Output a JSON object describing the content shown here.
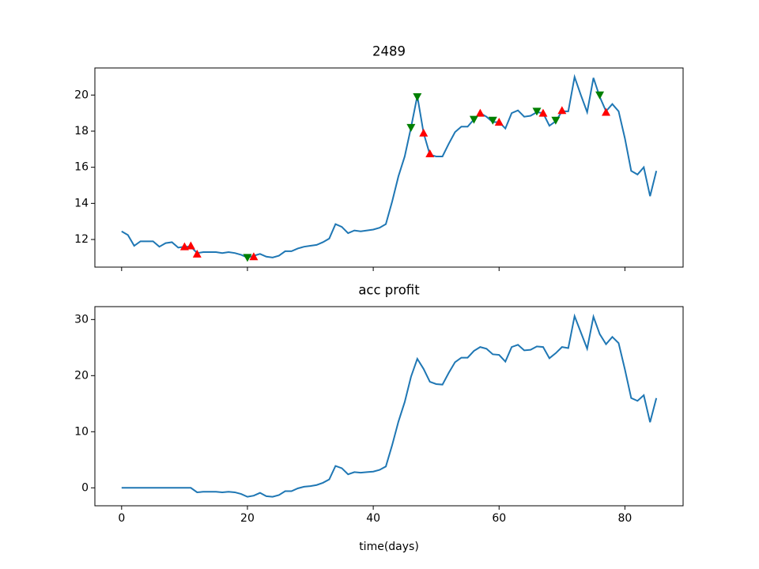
{
  "chart_data": [
    {
      "type": "line",
      "title": "2489",
      "x": [
        0,
        1,
        2,
        3,
        4,
        5,
        6,
        7,
        8,
        9,
        10,
        11,
        12,
        13,
        14,
        15,
        16,
        17,
        18,
        19,
        20,
        21,
        22,
        23,
        24,
        25,
        26,
        27,
        28,
        29,
        30,
        31,
        32,
        33,
        34,
        35,
        36,
        37,
        38,
        39,
        40,
        41,
        42,
        43,
        44,
        45,
        46,
        47,
        48,
        49,
        50,
        51,
        52,
        53,
        54,
        55,
        56,
        57,
        58,
        59,
        60,
        61,
        62,
        63,
        64,
        65,
        66,
        67,
        68,
        69,
        70,
        71,
        72,
        73,
        74,
        75,
        76,
        77,
        78,
        79,
        80,
        81,
        82,
        83,
        84,
        85
      ],
      "series": [
        {
          "color": "#1f77b4",
          "values": [
            12.45,
            12.25,
            11.65,
            11.9,
            11.9,
            11.9,
            11.6,
            11.8,
            11.85,
            11.55,
            11.6,
            11.6,
            11.25,
            11.3,
            11.3,
            11.3,
            11.25,
            11.3,
            11.25,
            11.15,
            11.0,
            11.1,
            11.2,
            11.05,
            11.0,
            11.1,
            11.35,
            11.35,
            11.5,
            11.6,
            11.65,
            11.7,
            11.85,
            12.05,
            12.85,
            12.7,
            12.35,
            12.5,
            12.45,
            12.5,
            12.55,
            12.65,
            12.85,
            14.1,
            15.5,
            16.6,
            18.2,
            19.95,
            17.9,
            16.7,
            16.6,
            16.6,
            17.3,
            17.95,
            18.25,
            18.25,
            18.65,
            19.0,
            18.8,
            18.5,
            18.5,
            18.15,
            19.0,
            19.15,
            18.8,
            18.85,
            19.05,
            19.0,
            18.3,
            18.55,
            19.1,
            19.1,
            21.0,
            20.0,
            19.05,
            20.95,
            19.9,
            19.1,
            19.5,
            19.1,
            17.6,
            15.8,
            15.6,
            16.0,
            14.4,
            15.8
          ]
        },
        {
          "color": "#ff0000",
          "marker": "^",
          "x": [
            10,
            11,
            12,
            21,
            48,
            49,
            57,
            60,
            67,
            70,
            77
          ],
          "values": [
            11.6,
            11.65,
            11.2,
            11.05,
            17.9,
            16.75,
            19.0,
            18.5,
            19.0,
            19.15,
            19.05
          ]
        },
        {
          "color": "#008000",
          "marker": "v",
          "x": [
            20,
            46,
            47,
            56,
            59,
            66,
            69,
            76
          ],
          "values": [
            11.0,
            18.2,
            19.9,
            18.65,
            18.6,
            19.1,
            18.6,
            20.0
          ]
        }
      ],
      "xlim": [
        -4.25,
        89.25
      ],
      "xticks": [
        0,
        20,
        40,
        60,
        80
      ],
      "ylim": [
        10.47,
        21.5
      ],
      "yticks": [
        12,
        14,
        16,
        18,
        20
      ]
    },
    {
      "type": "line",
      "title": "acc profit",
      "xlabel": "time(days)",
      "x": [
        0,
        1,
        2,
        3,
        4,
        5,
        6,
        7,
        8,
        9,
        10,
        11,
        12,
        13,
        14,
        15,
        16,
        17,
        18,
        19,
        20,
        21,
        22,
        23,
        24,
        25,
        26,
        27,
        28,
        29,
        30,
        31,
        32,
        33,
        34,
        35,
        36,
        37,
        38,
        39,
        40,
        41,
        42,
        43,
        44,
        45,
        46,
        47,
        48,
        49,
        50,
        51,
        52,
        53,
        54,
        55,
        56,
        57,
        58,
        59,
        60,
        61,
        62,
        63,
        64,
        65,
        66,
        67,
        68,
        69,
        70,
        71,
        72,
        73,
        74,
        75,
        76,
        77,
        78,
        79,
        80,
        81,
        82,
        83,
        84,
        85
      ],
      "series": [
        {
          "color": "#1f77b4",
          "values": [
            0,
            0,
            0,
            0,
            0,
            0,
            0,
            0,
            0,
            0,
            0,
            0,
            -0.8,
            -0.7,
            -0.7,
            -0.7,
            -0.8,
            -0.7,
            -0.8,
            -1.1,
            -1.6,
            -1.4,
            -0.9,
            -1.5,
            -1.6,
            -1.3,
            -0.6,
            -0.6,
            -0.1,
            0.2,
            0.3,
            0.5,
            0.9,
            1.5,
            3.9,
            3.5,
            2.4,
            2.8,
            2.7,
            2.8,
            2.9,
            3.2,
            3.8,
            7.6,
            11.8,
            15.3,
            19.8,
            23.0,
            21.2,
            18.9,
            18.5,
            18.4,
            20.5,
            22.4,
            23.2,
            23.2,
            24.4,
            25.1,
            24.8,
            23.8,
            23.7,
            22.5,
            25.1,
            25.5,
            24.5,
            24.6,
            25.2,
            25.1,
            23.1,
            24.0,
            25.1,
            24.9,
            30.6,
            27.7,
            24.8,
            30.5,
            27.4,
            25.6,
            26.9,
            25.8,
            21.1,
            16.0,
            15.5,
            16.5,
            11.7,
            16.0
          ]
        }
      ],
      "xlim": [
        -4.25,
        89.25
      ],
      "xticks": [
        0,
        20,
        40,
        60,
        80
      ],
      "ylim": [
        -3.2,
        32.3
      ],
      "yticks": [
        0,
        10,
        20,
        30
      ]
    }
  ]
}
